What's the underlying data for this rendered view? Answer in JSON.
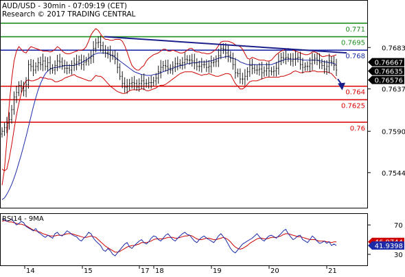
{
  "header": {
    "title": "AUD/USD - 30min - 07:09:19 (CET)",
    "copyright": "Research © 2017 TRADING CENTRAL"
  },
  "colors": {
    "price": "#000000",
    "bollinger": "#cc0000",
    "moving_average": "#1c2aa8",
    "resistance_green": "#1e8c1e",
    "support_red": "#dd0000",
    "trendline": "#1a1f8c",
    "arrow": "#1a1f8c",
    "rsi": "#1c2aa8",
    "rsi_ma": "#cc0000",
    "axis": "#000000"
  },
  "chart_data": [
    {
      "type": "candlestick",
      "name": "price_panel",
      "ylim": [
        0.7505,
        0.7735
      ],
      "y_ticks": [
        "0.7683",
        "0.7637",
        "0.7590",
        "0.7544"
      ],
      "y_tick_values": [
        0.7683,
        0.7637,
        0.759,
        0.7544
      ],
      "x_ticks": [
        "14",
        "15",
        "17",
        "18",
        "19",
        "20",
        "21"
      ],
      "levels": [
        {
          "label": "0.771",
          "value": 0.771,
          "color": "resistance_green"
        },
        {
          "label": "0.7695",
          "value": 0.7695,
          "color": "resistance_green"
        },
        {
          "label": "0.768",
          "value": 0.768,
          "color": "moving_average"
        },
        {
          "label": "0.764",
          "value": 0.764,
          "color": "support_red"
        },
        {
          "label": "0.7625",
          "value": 0.7625,
          "color": "support_red"
        },
        {
          "label": "0.76",
          "value": 0.76,
          "color": "support_red"
        }
      ],
      "value_badges": [
        {
          "label": "0.76667",
          "value": 0.76667
        },
        {
          "label": "0.76635",
          "value": 0.76635
        },
        {
          "label": "0.76576",
          "value": 0.76576
        }
      ],
      "trendline": {
        "start": [
          152,
          0.7695
        ],
        "end": [
          505,
          0.7677
        ]
      },
      "arrow": {
        "from": [
          492,
          0.7648
        ],
        "to": [
          498,
          0.7637
        ]
      },
      "close_series": [
        0.759,
        0.7594,
        0.7599,
        0.7603,
        0.7614,
        0.7628,
        0.7633,
        0.7641,
        0.7638,
        0.7635,
        0.7642,
        0.7664,
        0.7662,
        0.7658,
        0.7662,
        0.7666,
        0.7664,
        0.7668,
        0.7662,
        0.7666,
        0.766,
        0.7658,
        0.7663,
        0.7668,
        0.7667,
        0.7663,
        0.766,
        0.766,
        0.7658,
        0.7663,
        0.7665,
        0.7667,
        0.7669,
        0.7664,
        0.7667,
        0.7668,
        0.7671,
        0.7673,
        0.7682,
        0.7688,
        0.7689,
        0.7685,
        0.768,
        0.7677,
        0.7677,
        0.7674,
        0.7674,
        0.767,
        0.7661,
        0.7651,
        0.7643,
        0.7639,
        0.764,
        0.7643,
        0.7644,
        0.7643,
        0.7639,
        0.7643,
        0.7646,
        0.7643,
        0.7643,
        0.7644,
        0.7644,
        0.7646,
        0.7649,
        0.7656,
        0.7661,
        0.7663,
        0.7662,
        0.766,
        0.7658,
        0.7662,
        0.7665,
        0.7665,
        0.7664,
        0.7666,
        0.767,
        0.7669,
        0.7669,
        0.7668,
        0.7666,
        0.7662,
        0.7662,
        0.7664,
        0.7664,
        0.7661,
        0.7662,
        0.7666,
        0.7667,
        0.7668,
        0.7674,
        0.7682,
        0.7681,
        0.7677,
        0.7674,
        0.7671,
        0.7664,
        0.7655,
        0.7654,
        0.7648,
        0.7648,
        0.7651,
        0.7656,
        0.7663,
        0.766,
        0.7658,
        0.7658,
        0.7659,
        0.7655,
        0.7657,
        0.766,
        0.7657,
        0.7656,
        0.7657,
        0.766,
        0.7668,
        0.7672,
        0.7671,
        0.7672,
        0.7671,
        0.7668,
        0.767,
        0.7671,
        0.7672,
        0.7664,
        0.7661,
        0.7662,
        0.7662,
        0.7665,
        0.7669,
        0.7671,
        0.7669,
        0.7666,
        0.7663,
        0.7659,
        0.7662,
        0.7668,
        0.7667,
        0.7663,
        0.7658
      ],
      "bollinger_upper": [
        0.753,
        0.7548,
        0.758,
        0.762,
        0.7648,
        0.7668,
        0.7679,
        0.7684,
        0.7681,
        0.7678,
        0.7677,
        0.7681,
        0.7684,
        0.7683,
        0.7682,
        0.7681,
        0.768,
        0.7679,
        0.7679,
        0.7679,
        0.7678,
        0.7679,
        0.7681,
        0.7684,
        0.7682,
        0.7679,
        0.7677,
        0.7676,
        0.7676,
        0.7677,
        0.7678,
        0.7679,
        0.768,
        0.768,
        0.7681,
        0.7684,
        0.769,
        0.7697,
        0.7701,
        0.7704,
        0.7702,
        0.7698,
        0.7694,
        0.7692,
        0.7692,
        0.7691,
        0.7691,
        0.7692,
        0.7692,
        0.7692,
        0.769,
        0.7685,
        0.7678,
        0.767,
        0.7663,
        0.766,
        0.7658,
        0.7658,
        0.7661,
        0.7663,
        0.7668,
        0.7671,
        0.7673,
        0.7675,
        0.7676,
        0.7677,
        0.7679,
        0.7681,
        0.7681,
        0.7679,
        0.7679,
        0.768,
        0.7679,
        0.7678,
        0.7677,
        0.7677,
        0.7678,
        0.768,
        0.7682,
        0.7682,
        0.7679,
        0.7678,
        0.7678,
        0.7677,
        0.7677,
        0.7676,
        0.7676,
        0.7677,
        0.7679,
        0.7681,
        0.7685,
        0.7689,
        0.769,
        0.769,
        0.769,
        0.7689,
        0.7688,
        0.7686,
        0.7685,
        0.7684,
        0.7681,
        0.7676,
        0.7671,
        0.767,
        0.7672,
        0.7671,
        0.767,
        0.7669,
        0.7669,
        0.7669,
        0.7668,
        0.7668,
        0.7669,
        0.7672,
        0.7675,
        0.7677,
        0.7679,
        0.768,
        0.7681,
        0.7682,
        0.7681,
        0.768,
        0.7679,
        0.7678,
        0.7677,
        0.7676,
        0.7675,
        0.7675,
        0.7676,
        0.7678,
        0.7678,
        0.7677,
        0.7675,
        0.7673,
        0.7673,
        0.7674,
        0.7674,
        0.7673,
        0.7674,
        0.7675
      ],
      "bollinger_lower": [
        0.7548,
        0.7546,
        0.7548,
        0.756,
        0.7575,
        0.7592,
        0.7608,
        0.7621,
        0.7632,
        0.7641,
        0.7646,
        0.7647,
        0.7646,
        0.7646,
        0.7647,
        0.7648,
        0.765,
        0.7649,
        0.7649,
        0.7648,
        0.7648,
        0.7647,
        0.7645,
        0.7645,
        0.7646,
        0.7647,
        0.7649,
        0.765,
        0.7651,
        0.7652,
        0.7653,
        0.7651,
        0.765,
        0.7649,
        0.7648,
        0.7647,
        0.7646,
        0.7646,
        0.7649,
        0.7652,
        0.7651,
        0.7651,
        0.7649,
        0.7646,
        0.7643,
        0.764,
        0.7638,
        0.7636,
        0.7634,
        0.7633,
        0.7632,
        0.7632,
        0.7633,
        0.7635,
        0.7636,
        0.7636,
        0.7636,
        0.7636,
        0.7637,
        0.7637,
        0.7635,
        0.7635,
        0.7636,
        0.7637,
        0.7638,
        0.764,
        0.7641,
        0.7641,
        0.7642,
        0.7644,
        0.7646,
        0.7648,
        0.765,
        0.7652,
        0.7654,
        0.7655,
        0.7656,
        0.7656,
        0.7656,
        0.7656,
        0.7655,
        0.7654,
        0.7653,
        0.7652,
        0.7653,
        0.7653,
        0.7654,
        0.7653,
        0.7652,
        0.7651,
        0.7651,
        0.7652,
        0.7653,
        0.7654,
        0.7654,
        0.7653,
        0.7648,
        0.7643,
        0.764,
        0.7637,
        0.7637,
        0.7639,
        0.7642,
        0.7645,
        0.7646,
        0.7646,
        0.7646,
        0.7647,
        0.7648,
        0.7649,
        0.765,
        0.765,
        0.765,
        0.765,
        0.765,
        0.765,
        0.7651,
        0.7651,
        0.7652,
        0.7653,
        0.7654,
        0.7656,
        0.7657,
        0.7656,
        0.7655,
        0.7655,
        0.7656,
        0.7656,
        0.7656,
        0.7657,
        0.7657,
        0.7656,
        0.7656,
        0.7656,
        0.7656,
        0.7656,
        0.7655,
        0.7654,
        0.7651,
        0.7648
      ],
      "moving_average": [
        0.7514,
        0.7516,
        0.752,
        0.7525,
        0.7531,
        0.7538,
        0.7546,
        0.7555,
        0.7564,
        0.7574,
        0.7584,
        0.7595,
        0.7606,
        0.7617,
        0.7627,
        0.7636,
        0.7643,
        0.7649,
        0.7654,
        0.7657,
        0.7659,
        0.766,
        0.7661,
        0.7661,
        0.7662,
        0.7662,
        0.7663,
        0.7663,
        0.7663,
        0.7663,
        0.7663,
        0.7664,
        0.7665,
        0.7666,
        0.7668,
        0.7669,
        0.7671,
        0.7673,
        0.7675,
        0.7676,
        0.7677,
        0.7677,
        0.7677,
        0.7677,
        0.7676,
        0.7675,
        0.7674,
        0.7672,
        0.767,
        0.7668,
        0.7666,
        0.7664,
        0.7662,
        0.766,
        0.7658,
        0.7656,
        0.7655,
        0.7654,
        0.7653,
        0.7653,
        0.7652,
        0.7652,
        0.7652,
        0.7653,
        0.7653,
        0.7654,
        0.7655,
        0.7656,
        0.7657,
        0.7658,
        0.7659,
        0.766,
        0.7661,
        0.7662,
        0.7663,
        0.7663,
        0.7664,
        0.7665,
        0.7665,
        0.7666,
        0.7666,
        0.7666,
        0.7667,
        0.7667,
        0.7667,
        0.7667,
        0.7668,
        0.7668,
        0.7669,
        0.767,
        0.7671,
        0.7672,
        0.7672,
        0.7673,
        0.7673,
        0.7672,
        0.7671,
        0.767,
        0.7669,
        0.7667,
        0.7666,
        0.7665,
        0.7664,
        0.7664,
        0.7664,
        0.7664,
        0.7664,
        0.7664,
        0.7664,
        0.7664,
        0.7664,
        0.7664,
        0.7664,
        0.7665,
        0.7666,
        0.7667,
        0.7668,
        0.7669,
        0.767,
        0.767,
        0.767,
        0.767,
        0.767,
        0.767,
        0.767,
        0.7669,
        0.7669,
        0.7669,
        0.7669,
        0.7669,
        0.7669,
        0.7669,
        0.7668,
        0.7668,
        0.7667,
        0.7667,
        0.7666,
        0.7666,
        0.7665,
        0.7664
      ]
    },
    {
      "type": "line",
      "name": "rsi_panel",
      "title": "RSI14 - 9MA",
      "ylim": [
        15,
        85
      ],
      "y_ticks": [
        "70",
        "30"
      ],
      "y_tick_values": [
        70,
        30
      ],
      "value_badges": [
        {
          "label": "46.9744",
          "value": 46.9744,
          "series": "rsi_ma"
        },
        {
          "label": "41.9398",
          "value": 41.9398,
          "series": "rsi"
        }
      ],
      "rsi": [
        78,
        77,
        75,
        76,
        78,
        74,
        70,
        72,
        75,
        73,
        68,
        66,
        64,
        62,
        65,
        60,
        58,
        55,
        53,
        56,
        54,
        52,
        58,
        60,
        56,
        55,
        58,
        62,
        60,
        57,
        55,
        54,
        50,
        48,
        52,
        55,
        60,
        58,
        52,
        48,
        45,
        42,
        36,
        34,
        38,
        35,
        30,
        28,
        32,
        36,
        40,
        44,
        46,
        40,
        38,
        42,
        45,
        48,
        50,
        46,
        44,
        47,
        52,
        55,
        54,
        50,
        48,
        52,
        56,
        58,
        54,
        50,
        48,
        52,
        55,
        58,
        60,
        57,
        56,
        52,
        48,
        46,
        50,
        53,
        55,
        52,
        50,
        48,
        46,
        50,
        55,
        58,
        54,
        50,
        44,
        38,
        34,
        32,
        36,
        40,
        44,
        46,
        48,
        50,
        52,
        55,
        58,
        54,
        50,
        48,
        52,
        55,
        56,
        54,
        52,
        55,
        58,
        62,
        64,
        58,
        54,
        50,
        52,
        55,
        56,
        50,
        48,
        46,
        50,
        55,
        52,
        48,
        45,
        46,
        48,
        45,
        47,
        42,
        44,
        42
      ],
      "rsi_ma": [
        75,
        76,
        75,
        74,
        74,
        73,
        72,
        71,
        71,
        70,
        69,
        67,
        65,
        63,
        62,
        61,
        60,
        58,
        57,
        56,
        55,
        55,
        55,
        56,
        56,
        56,
        57,
        58,
        58,
        58,
        57,
        56,
        55,
        54,
        53,
        53,
        54,
        55,
        54,
        53,
        50,
        47,
        44,
        41,
        39,
        37,
        35,
        33,
        33,
        34,
        36,
        38,
        40,
        41,
        42,
        42,
        43,
        44,
        46,
        46,
        46,
        47,
        48,
        50,
        51,
        51,
        51,
        51,
        52,
        53,
        53,
        53,
        52,
        52,
        53,
        54,
        55,
        55,
        56,
        55,
        53,
        51,
        50,
        50,
        51,
        52,
        52,
        51,
        50,
        50,
        51,
        52,
        53,
        52,
        50,
        47,
        43,
        40,
        38,
        37,
        38,
        40,
        42,
        45,
        47,
        49,
        51,
        52,
        52,
        51,
        51,
        52,
        53,
        53,
        53,
        54,
        55,
        57,
        58,
        58,
        57,
        56,
        55,
        54,
        54,
        53,
        52,
        51,
        50,
        50,
        50,
        49,
        48,
        48,
        48,
        47,
        47,
        46,
        47,
        47
      ]
    }
  ]
}
